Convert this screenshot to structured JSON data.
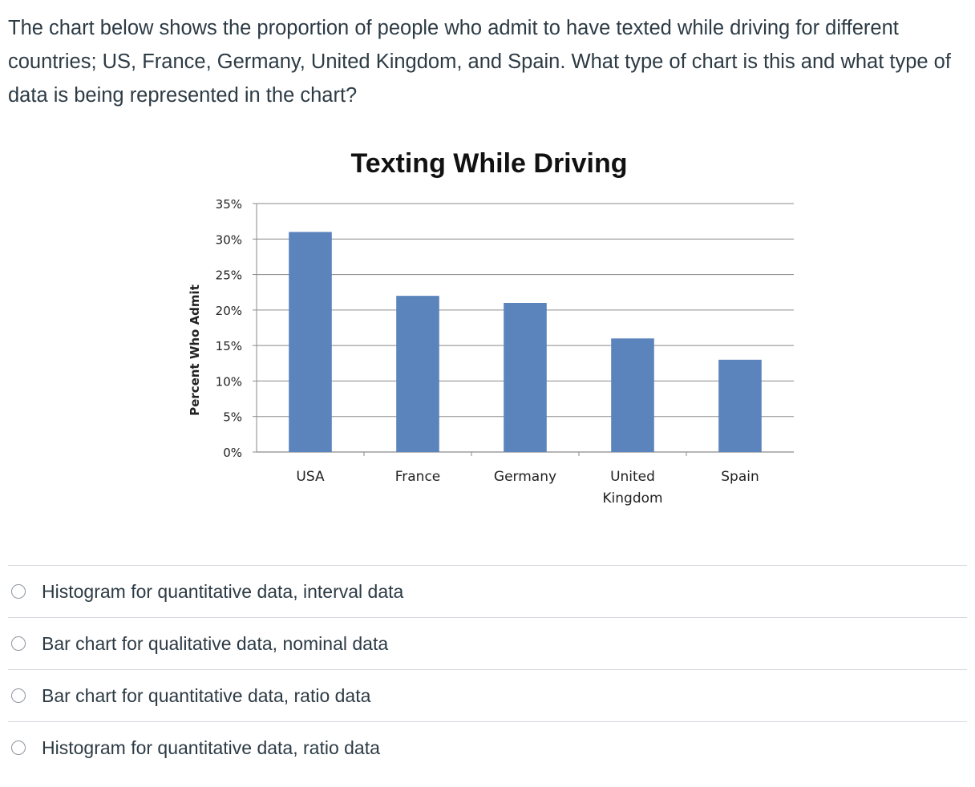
{
  "question": {
    "text": "The chart below shows the proportion of people who admit to have texted while driving for different countries; US, France, Germany, United Kingdom, and Spain. What type of chart is this and what type of data is being represented in the chart?"
  },
  "chart_data": {
    "type": "bar",
    "title": "Texting While Driving",
    "xlabel": "",
    "ylabel": "Percent Who Admit",
    "categories": [
      "USA",
      "France",
      "Germany",
      "United Kingdom",
      "Spain"
    ],
    "category_lines": [
      [
        "USA"
      ],
      [
        "France"
      ],
      [
        "Germany"
      ],
      [
        "United",
        "Kingdom"
      ],
      [
        "Spain"
      ]
    ],
    "values": [
      31,
      22,
      21,
      16,
      13
    ],
    "ylim": [
      0,
      35
    ],
    "yticks": [
      0,
      5,
      10,
      15,
      20,
      25,
      30,
      35
    ],
    "ytick_labels": [
      "0%",
      "5%",
      "10%",
      "15%",
      "20%",
      "25%",
      "30%",
      "35%"
    ],
    "grid": true,
    "bar_color": "#5b84bc",
    "grid_color": "#8a8a8a"
  },
  "answers": [
    {
      "label": "Histogram for quantitative data, interval data"
    },
    {
      "label": "Bar chart for qualitative data, nominal data"
    },
    {
      "label": "Bar chart for quantitative data, ratio data"
    },
    {
      "label": "Histogram for quantitative data, ratio data"
    }
  ]
}
